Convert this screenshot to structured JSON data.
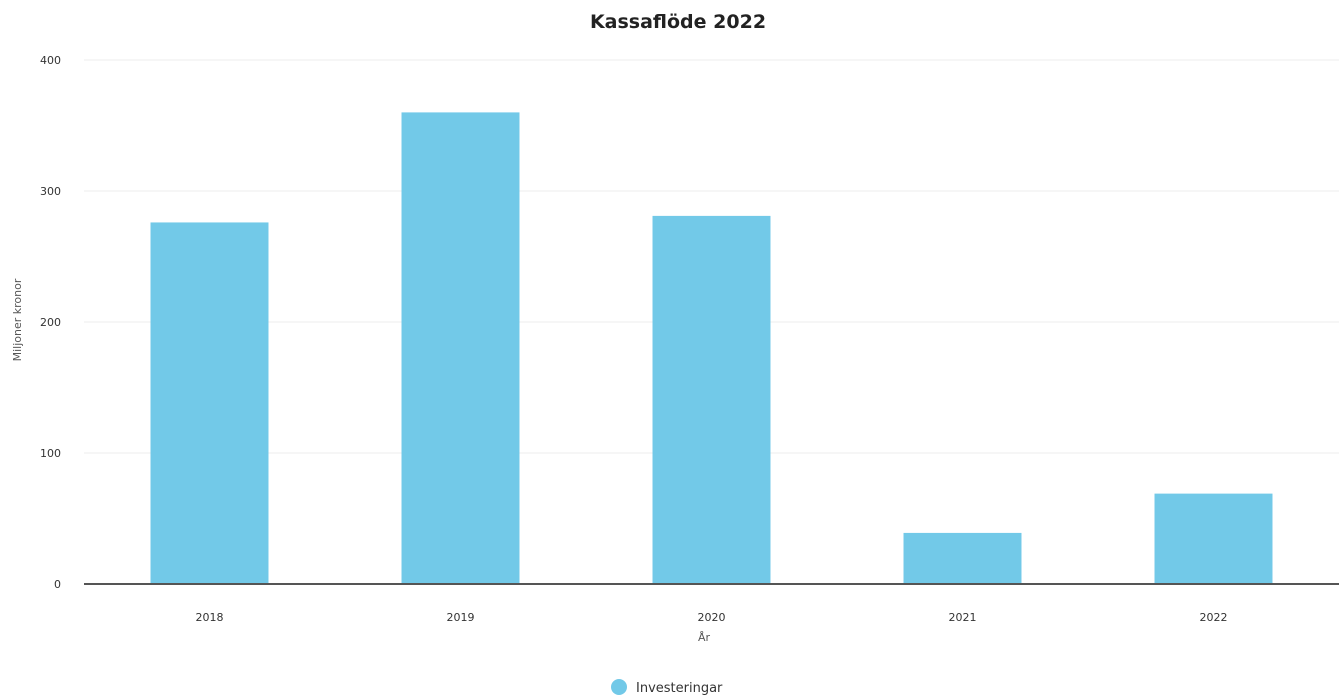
{
  "chart_data": {
    "type": "bar",
    "title": "Kassaflöde 2022",
    "xlabel": "År",
    "ylabel": "Miljoner kronor",
    "categories": [
      "2018",
      "2019",
      "2020",
      "2021",
      "2022"
    ],
    "series": [
      {
        "name": "Investeringar",
        "values": [
          276,
          360,
          281,
          39,
          69
        ],
        "color": "#72c9e8"
      }
    ],
    "ylim": [
      0,
      400
    ],
    "yticks": [
      0,
      100,
      200,
      300,
      400
    ],
    "grid": true,
    "legend_position": "bottom-center"
  }
}
